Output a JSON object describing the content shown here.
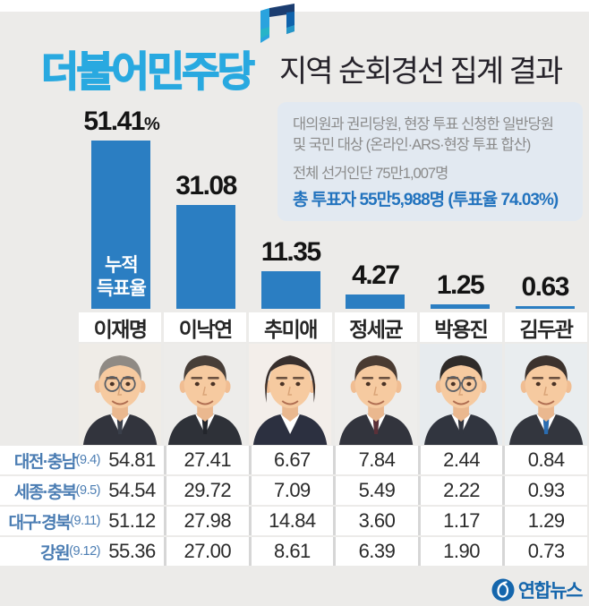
{
  "header": {
    "party_name": "더불어민주당",
    "title": "지역 순회경선 집계 결과"
  },
  "info_box": {
    "audience_line1": "대의원과 권리당원, 현장 투표 신청한 일반당원",
    "audience_line2": "및 국민 대상 (온라인·ARS·현장 투표 합산)",
    "electorate": "전체 선거인단 75만1,007명",
    "turnout": "총 투표자 55만5,988명 (투표율 74.03%)"
  },
  "chart_data": [
    {
      "type": "bar",
      "title": "더불어민주당 지역 순회경선 누적 득표율",
      "unit": "%",
      "categories": [
        "이재명",
        "이낙연",
        "추미애",
        "정세균",
        "박용진",
        "김두관"
      ],
      "values": [
        51.41,
        31.08,
        11.35,
        4.27,
        1.25,
        0.63
      ],
      "labels": [
        "51.41",
        "31.08",
        "11.35",
        "4.27",
        "1.25",
        "0.63"
      ],
      "bar_label_line1": "누적",
      "bar_label_line2": "득표율",
      "ylim": [
        0,
        55
      ],
      "grid": false,
      "legend": false
    },
    {
      "type": "table",
      "columns": [
        "이재명",
        "이낙연",
        "추미애",
        "정세균",
        "박용진",
        "김두관"
      ],
      "rows": [
        {
          "region": "대전·충남",
          "date": "(9.4)",
          "values": [
            "54.81",
            "27.41",
            "6.67",
            "7.84",
            "2.44",
            "0.84"
          ]
        },
        {
          "region": "세종·충북",
          "date": "(9.5)",
          "values": [
            "54.54",
            "29.72",
            "7.09",
            "5.49",
            "2.22",
            "0.93"
          ]
        },
        {
          "region": "대구·경북",
          "date": "(9.11)",
          "values": [
            "51.12",
            "27.98",
            "14.84",
            "3.60",
            "1.17",
            "1.29"
          ]
        },
        {
          "region": "강원",
          "date": "(9.12)",
          "values": [
            "55.36",
            "27.00",
            "8.61",
            "6.39",
            "1.90",
            "0.73"
          ]
        }
      ]
    }
  ],
  "avatars": [
    {
      "bg": "#efece7",
      "hair": "#8f8a84",
      "suit": "#32343d",
      "tie": "#3a3f4a",
      "glasses": true,
      "female": false
    },
    {
      "bg": "#edecea",
      "hair": "#473e38",
      "suit": "#2e3138",
      "tie": "#23262c",
      "glasses": false,
      "female": false
    },
    {
      "bg": "#f3eeea",
      "hair": "#382f2d",
      "suit": "#2c3040",
      "tie": null,
      "glasses": false,
      "female": true
    },
    {
      "bg": "#eeedeb",
      "hair": "#4a3b32",
      "suit": "#32343d",
      "tie": "#5a3038",
      "glasses": false,
      "female": false
    },
    {
      "bg": "#e7ebee",
      "hair": "#2f2b29",
      "suit": "#31353f",
      "tie": "#31353f",
      "glasses": true,
      "female": false
    },
    {
      "bg": "#e9edef",
      "hair": "#3d332e",
      "suit": "#33363e",
      "tie": "#2a6cb0",
      "glasses": false,
      "female": false
    }
  ],
  "footer": {
    "agency": "연합뉴스"
  },
  "colors": {
    "party_blue": "#29a9e0",
    "bar_blue": "#2b7ec2",
    "info_blue": "#2273be",
    "region_blue": "#4b7db3",
    "agency_blue": "#1566ac"
  }
}
